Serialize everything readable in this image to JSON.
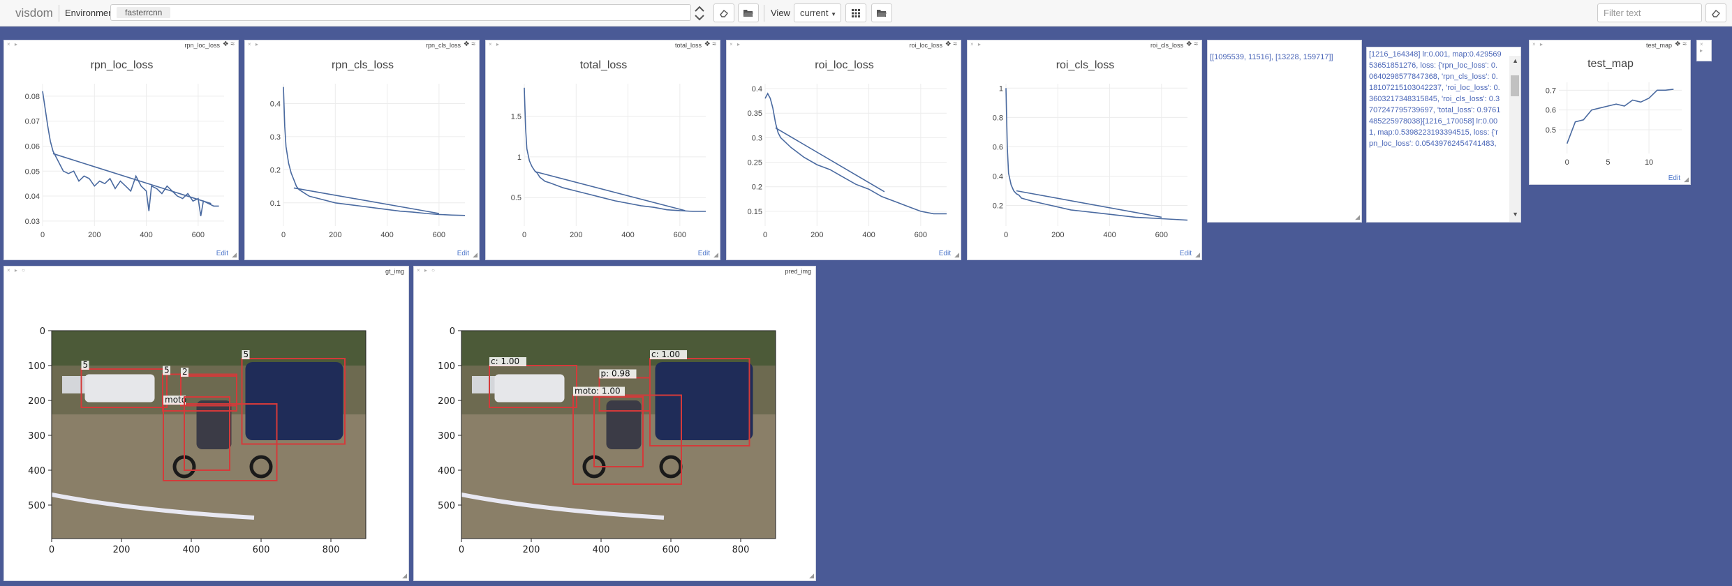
{
  "navbar": {
    "brand": "visdom",
    "environment_label": "Environment",
    "environment_value": "fasterrcnn",
    "view_label": "View",
    "view_value": "current",
    "filter_placeholder": "Filter text"
  },
  "colors": {
    "background": "#4a5a96",
    "line": "#4a6aa0",
    "box": "#d43a3a",
    "text_link": "#4a66b8"
  },
  "windows": {
    "rpn_loc": {
      "tag": "rpn_loc_loss",
      "edit": "Edit"
    },
    "rpn_cls": {
      "tag": "rpn_cls_loss",
      "edit": "Edit"
    },
    "total": {
      "tag": "total_loss",
      "edit": "Edit"
    },
    "roi_loc": {
      "tag": "roi_loc_loss",
      "edit": "Edit"
    },
    "roi_cls": {
      "tag": "roi_cls_loss",
      "edit": "Edit"
    },
    "test_map": {
      "tag": "test_map",
      "edit": "Edit"
    },
    "gt_img": {
      "tag": "gt_img"
    },
    "pred_img": {
      "tag": "pred_img"
    }
  },
  "text_windows": {
    "counts": "[[1095539, 11516], [13228, 159717]]",
    "log": "[1216_164348] lr:0.001, map:0.42956953651851276, loss: {'rpn_loc_loss': 0.0640298577847368, 'rpn_cls_loss': 0.18107215103042237, 'roi_loc_loss': 0.3603217348315845, 'roi_cls_loss': 0.3707247795739697, 'total_loss': 0.9761485225978038}[1216_170058] lr:0.001, map:0.5398223193394515, loss: {'rpn_loc_loss': 0.05439762454741483,"
  },
  "chart_data": [
    {
      "id": "rpn_loc",
      "type": "line",
      "title": "rpn_loc_loss",
      "xlim": [
        0,
        700
      ],
      "ylim": [
        0.028,
        0.085
      ],
      "xticks": [
        0,
        200,
        400,
        600
      ],
      "yticks": [
        0.03,
        0.04,
        0.05,
        0.06,
        0.07,
        0.08
      ],
      "x": [
        0,
        10,
        20,
        30,
        40,
        50,
        60,
        80,
        100,
        120,
        140,
        160,
        180,
        200,
        220,
        240,
        260,
        280,
        300,
        320,
        340,
        360,
        380,
        400,
        410,
        420,
        440,
        460,
        480,
        500,
        520,
        540,
        560,
        580,
        600,
        610,
        620,
        640,
        660,
        680
      ],
      "y": [
        0.082,
        0.075,
        0.068,
        0.062,
        0.058,
        0.056,
        0.054,
        0.05,
        0.049,
        0.05,
        0.046,
        0.048,
        0.047,
        0.044,
        0.046,
        0.045,
        0.047,
        0.043,
        0.046,
        0.044,
        0.042,
        0.048,
        0.044,
        0.042,
        0.034,
        0.044,
        0.043,
        0.041,
        0.044,
        0.042,
        0.04,
        0.039,
        0.041,
        0.038,
        0.039,
        0.032,
        0.038,
        0.037,
        0.036,
        0.036
      ],
      "trend": {
        "x": [
          40,
          650
        ],
        "y": [
          0.057,
          0.037
        ]
      }
    },
    {
      "id": "rpn_cls",
      "type": "line",
      "title": "rpn_cls_loss",
      "xlim": [
        0,
        700
      ],
      "ylim": [
        0.03,
        0.46
      ],
      "xticks": [
        0,
        200,
        400,
        600
      ],
      "yticks": [
        0.1,
        0.2,
        0.3,
        0.4
      ],
      "x": [
        0,
        5,
        10,
        20,
        30,
        40,
        50,
        60,
        80,
        100,
        150,
        200,
        250,
        300,
        350,
        400,
        450,
        500,
        550,
        600,
        650,
        700
      ],
      "y": [
        0.45,
        0.33,
        0.27,
        0.22,
        0.19,
        0.17,
        0.15,
        0.14,
        0.13,
        0.12,
        0.11,
        0.1,
        0.095,
        0.09,
        0.085,
        0.08,
        0.075,
        0.072,
        0.068,
        0.065,
        0.063,
        0.062
      ],
      "trend": {
        "x": [
          40,
          600
        ],
        "y": [
          0.145,
          0.068
        ]
      }
    },
    {
      "id": "total",
      "type": "line",
      "title": "total_loss",
      "xlim": [
        0,
        700
      ],
      "ylim": [
        0.15,
        1.9
      ],
      "xticks": [
        0,
        200,
        400,
        600
      ],
      "yticks": [
        0.5,
        1,
        1.5
      ],
      "x": [
        0,
        5,
        10,
        20,
        30,
        40,
        50,
        60,
        80,
        100,
        150,
        200,
        250,
        300,
        350,
        400,
        450,
        500,
        550,
        600,
        650,
        700
      ],
      "y": [
        1.85,
        1.35,
        1.1,
        0.95,
        0.88,
        0.83,
        0.8,
        0.75,
        0.7,
        0.68,
        0.62,
        0.58,
        0.54,
        0.5,
        0.46,
        0.43,
        0.4,
        0.38,
        0.35,
        0.34,
        0.33,
        0.33
      ],
      "trend": {
        "x": [
          40,
          620
        ],
        "y": [
          0.82,
          0.34
        ]
      }
    },
    {
      "id": "roi_loc",
      "type": "line",
      "title": "roi_loc_loss",
      "xlim": [
        0,
        700
      ],
      "ylim": [
        0.12,
        0.41
      ],
      "xticks": [
        0,
        200,
        400,
        600
      ],
      "yticks": [
        0.15,
        0.2,
        0.25,
        0.3,
        0.35,
        0.4
      ],
      "x": [
        0,
        10,
        20,
        30,
        40,
        50,
        60,
        80,
        100,
        150,
        200,
        250,
        300,
        350,
        400,
        450,
        500,
        550,
        600,
        650,
        700
      ],
      "y": [
        0.38,
        0.39,
        0.38,
        0.36,
        0.33,
        0.31,
        0.3,
        0.29,
        0.28,
        0.26,
        0.245,
        0.235,
        0.22,
        0.205,
        0.195,
        0.18,
        0.17,
        0.16,
        0.15,
        0.145,
        0.145
      ],
      "trend": {
        "x": [
          40,
          460
        ],
        "y": [
          0.32,
          0.19
        ]
      }
    },
    {
      "id": "roi_cls",
      "type": "line",
      "title": "roi_cls_loss",
      "xlim": [
        0,
        700
      ],
      "ylim": [
        0.06,
        1.03
      ],
      "xticks": [
        0,
        200,
        400,
        600
      ],
      "yticks": [
        0.2,
        0.4,
        0.6,
        0.8,
        1
      ],
      "x": [
        0,
        5,
        10,
        20,
        30,
        40,
        50,
        60,
        80,
        100,
        150,
        200,
        250,
        300,
        350,
        400,
        450,
        500,
        550,
        600,
        650,
        700
      ],
      "y": [
        1.0,
        0.6,
        0.42,
        0.34,
        0.3,
        0.28,
        0.27,
        0.25,
        0.24,
        0.23,
        0.21,
        0.19,
        0.17,
        0.16,
        0.15,
        0.14,
        0.13,
        0.12,
        0.115,
        0.11,
        0.105,
        0.1
      ],
      "trend": {
        "x": [
          40,
          600
        ],
        "y": [
          0.3,
          0.12
        ]
      }
    },
    {
      "id": "test_map",
      "type": "line",
      "title": "test_map",
      "xlim": [
        -1,
        14
      ],
      "ylim": [
        0.38,
        0.74
      ],
      "xticks": [
        0,
        5,
        10
      ],
      "yticks": [
        0.5,
        0.6,
        0.7
      ],
      "x": [
        0,
        1,
        2,
        3,
        4,
        5,
        6,
        7,
        8,
        9,
        10,
        11,
        12,
        13
      ],
      "y": [
        0.43,
        0.54,
        0.55,
        0.6,
        0.61,
        0.62,
        0.63,
        0.62,
        0.65,
        0.64,
        0.66,
        0.7,
        0.7,
        0.705
      ]
    }
  ],
  "images": {
    "gt": {
      "xticks": [
        0,
        200,
        400,
        600,
        800
      ],
      "yticks": [
        0,
        100,
        200,
        300,
        400,
        500
      ],
      "boxes": [
        {
          "x": [
            85,
            330
          ],
          "y": [
            110,
            220
          ],
          "label": "5"
        },
        {
          "x": [
            318,
            530
          ],
          "y": [
            125,
            230
          ],
          "label": "5"
        },
        {
          "x": [
            370,
            530
          ],
          "y": [
            130,
            215
          ],
          "label": "2"
        },
        {
          "x": [
            545,
            840
          ],
          "y": [
            80,
            325
          ],
          "label": "5"
        },
        {
          "x": [
            320,
            645
          ],
          "y": [
            210,
            430
          ],
          "label": "moto"
        },
        {
          "x": [
            380,
            510
          ],
          "y": [
            190,
            400
          ],
          "label": ""
        }
      ]
    },
    "pred": {
      "xticks": [
        0,
        200,
        400,
        600,
        800
      ],
      "yticks": [
        0,
        100,
        200,
        300,
        400,
        500
      ],
      "boxes": [
        {
          "x": [
            80,
            330
          ],
          "y": [
            100,
            220
          ],
          "label": "c: 1.00"
        },
        {
          "x": [
            395,
            540
          ],
          "y": [
            135,
            230
          ],
          "label": "p: 0.98"
        },
        {
          "x": [
            540,
            825
          ],
          "y": [
            80,
            330
          ],
          "label": "c: 1.00"
        },
        {
          "x": [
            320,
            630
          ],
          "y": [
            185,
            440
          ],
          "label": "moto: 1.00"
        },
        {
          "x": [
            380,
            520
          ],
          "y": [
            190,
            390
          ],
          "label": ""
        }
      ]
    }
  }
}
